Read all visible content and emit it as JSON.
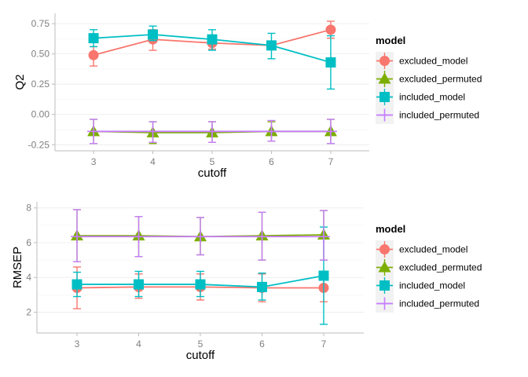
{
  "chart_data": [
    {
      "type": "line",
      "xlabel": "cutoff",
      "ylabel": "Q2",
      "x": [
        3,
        4,
        5,
        6,
        7
      ],
      "xlim": [
        2.35,
        7.65
      ],
      "ylim": [
        -0.3,
        0.835
      ],
      "yticks": [
        -0.25,
        0.0,
        0.25,
        0.5,
        0.75
      ],
      "ytick_labels": [
        "-0.25",
        "0.00",
        "0.25",
        "0.50",
        "0.75"
      ],
      "grid": true,
      "legend": {
        "title": "model",
        "position": "right",
        "entries": [
          "excluded_model",
          "excluded_permuted",
          "included_model",
          "included_permuted"
        ]
      },
      "series": [
        {
          "name": "excluded_model",
          "color": "#F8766D",
          "marker": "circle",
          "values": [
            0.49,
            0.62,
            0.59,
            0.57,
            0.7
          ],
          "err_low": [
            0.4,
            0.53,
            0.54,
            0.55,
            0.63
          ],
          "err_high": [
            0.56,
            0.7,
            0.64,
            0.58,
            0.77
          ]
        },
        {
          "name": "excluded_permuted",
          "color": "#7CAE00",
          "marker": "triangle",
          "values": [
            -0.14,
            -0.15,
            -0.15,
            -0.14,
            -0.14
          ],
          "err_low": [
            -0.24,
            -0.24,
            -0.23,
            -0.22,
            -0.24
          ],
          "err_high": [
            -0.04,
            -0.06,
            -0.06,
            -0.06,
            -0.04
          ]
        },
        {
          "name": "included_model",
          "color": "#00BFC4",
          "marker": "square",
          "values": [
            0.63,
            0.66,
            0.62,
            0.57,
            0.43
          ],
          "err_low": [
            0.56,
            0.61,
            0.53,
            0.46,
            0.21
          ],
          "err_high": [
            0.7,
            0.73,
            0.7,
            0.67,
            0.65
          ]
        },
        {
          "name": "included_permuted",
          "color": "#C77CFF",
          "marker": "cross",
          "values": [
            -0.14,
            -0.14,
            -0.14,
            -0.14,
            -0.14
          ],
          "err_low": [
            -0.24,
            -0.23,
            -0.23,
            -0.22,
            -0.24
          ],
          "err_high": [
            -0.04,
            -0.06,
            -0.06,
            -0.05,
            -0.04
          ]
        }
      ]
    },
    {
      "type": "line",
      "xlabel": "cutoff",
      "ylabel": "RMSEP",
      "x": [
        3,
        4,
        5,
        6,
        7
      ],
      "xlim": [
        2.35,
        7.65
      ],
      "ylim": [
        0.8,
        8.35
      ],
      "yticks": [
        2,
        4,
        6,
        8
      ],
      "ytick_labels": [
        "2",
        "4",
        "6",
        "8"
      ],
      "grid": true,
      "legend": {
        "title": "model",
        "position": "right",
        "entries": [
          "excluded_model",
          "excluded_permuted",
          "included_model",
          "included_permuted"
        ]
      },
      "series": [
        {
          "name": "excluded_model",
          "color": "#F8766D",
          "marker": "circle",
          "values": [
            3.4,
            3.45,
            3.45,
            3.4,
            3.4
          ],
          "err_low": [
            2.2,
            2.8,
            2.7,
            2.6,
            2.6
          ],
          "err_high": [
            4.6,
            4.2,
            4.2,
            4.2,
            4.2
          ]
        },
        {
          "name": "excluded_permuted",
          "color": "#7CAE00",
          "marker": "triangle",
          "values": [
            6.4,
            6.4,
            6.35,
            6.4,
            6.45
          ],
          "err_low": [
            4.9,
            5.2,
            5.3,
            5.0,
            5.0
          ],
          "err_high": [
            7.9,
            7.5,
            7.45,
            7.75,
            7.85
          ]
        },
        {
          "name": "included_model",
          "color": "#00BFC4",
          "marker": "square",
          "values": [
            3.6,
            3.6,
            3.6,
            3.45,
            4.1
          ],
          "err_low": [
            2.9,
            2.9,
            2.9,
            2.7,
            1.3
          ],
          "err_high": [
            4.3,
            4.35,
            4.35,
            4.25,
            6.9
          ]
        },
        {
          "name": "included_permuted",
          "color": "#C77CFF",
          "marker": "cross",
          "values": [
            6.35,
            6.35,
            6.35,
            6.35,
            6.35
          ],
          "err_low": [
            4.9,
            5.2,
            5.3,
            5.0,
            5.0
          ],
          "err_high": [
            7.9,
            7.5,
            7.45,
            7.75,
            7.85
          ]
        }
      ]
    }
  ]
}
